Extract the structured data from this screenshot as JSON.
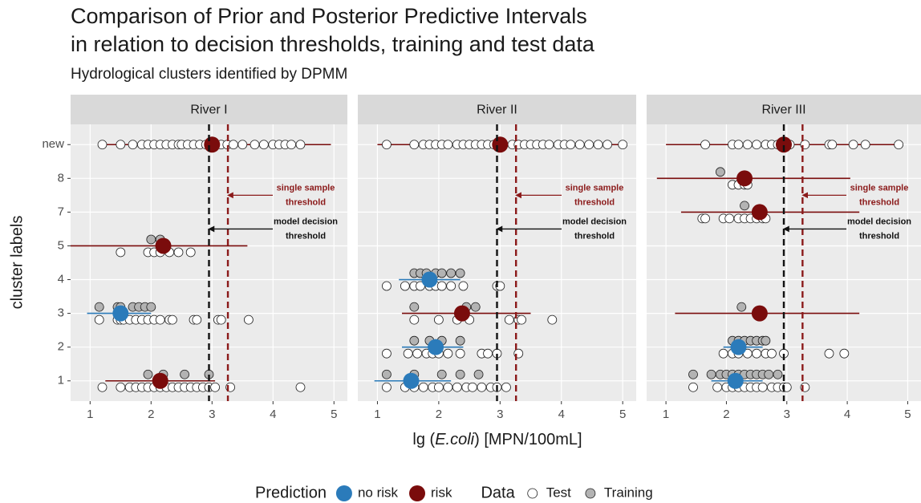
{
  "figure": {
    "title": [
      "Comparison of Prior and Posterior Predictive Intervals",
      "in relation to decision thresholds, training and test data"
    ],
    "subtitle": "Hydrological clusters identified by DPMM",
    "xlabel": [
      "lg (",
      "E.coli",
      ") [MPN/100mL]"
    ],
    "ylabel": "cluster labels",
    "thresholds": [
      {
        "value": 2.95,
        "color": "#111111",
        "label": [
          "model decision",
          "threshold"
        ]
      },
      {
        "value": 3.26,
        "color": "#8b1a1a",
        "label": [
          "single sample",
          "threshold"
        ]
      }
    ],
    "legend": [
      {
        "title": "Prediction",
        "items": [
          {
            "name": "no risk",
            "color": "#2b7bba"
          },
          {
            "name": "risk",
            "color": "#7a0c0c"
          }
        ]
      },
      {
        "title": "Data",
        "items": [
          {
            "name": "Test",
            "color": "#ffffff"
          },
          {
            "name": "Training",
            "color": "#b3b3b3"
          }
        ]
      }
    ]
  },
  "chart_data": [
    {
      "type": "dotinterval",
      "title": "River I",
      "categories": [
        "1",
        "2",
        "3",
        "4",
        "5",
        "7",
        "8",
        "new"
      ],
      "xlim": [
        0.68,
        5.22
      ],
      "xticks": [
        1,
        2,
        3,
        4,
        5
      ],
      "grid": true,
      "prediction": {
        "values": [
          2.15,
          null,
          1.5,
          null,
          2.2,
          null,
          null,
          3.0
        ],
        "low": [
          1.25,
          null,
          0.95,
          null,
          0.68,
          null,
          null,
          1.2
        ],
        "high": [
          3.05,
          null,
          2.0,
          null,
          3.58,
          null,
          null,
          4.95
        ],
        "class": [
          "risk",
          null,
          "no risk",
          null,
          "risk",
          null,
          null,
          "risk"
        ]
      },
      "training": {
        "categories": [
          "5",
          "5",
          "3",
          "3",
          "3",
          "3",
          "3",
          "3",
          "3",
          "1",
          "1",
          "1",
          "1"
        ],
        "values": [
          2.0,
          2.15,
          1.15,
          1.45,
          1.5,
          1.7,
          1.8,
          1.9,
          2.0,
          1.95,
          2.2,
          2.55,
          2.95
        ]
      },
      "test": {
        "categories": [
          "new",
          "new",
          "new",
          "new",
          "new",
          "new",
          "new",
          "new",
          "new",
          "new",
          "new",
          "new",
          "new",
          "new",
          "new",
          "new",
          "new",
          "new",
          "new",
          "new",
          "new",
          "new",
          "new",
          "new",
          "new",
          "new",
          "new",
          "5",
          "5",
          "5",
          "5",
          "5",
          "5",
          "5",
          "3",
          "3",
          "3",
          "3",
          "3",
          "3",
          "3",
          "3",
          "3",
          "3",
          "3",
          "3",
          "3",
          "3",
          "3",
          "3",
          "3",
          "1",
          "1",
          "1",
          "1",
          "1",
          "1",
          "1",
          "1",
          "1",
          "1",
          "1",
          "1",
          "1",
          "1",
          "1",
          "1",
          "1",
          "1",
          "1"
        ],
        "values": [
          1.2,
          1.5,
          1.7,
          1.85,
          1.95,
          2.05,
          2.15,
          2.25,
          2.35,
          2.45,
          2.5,
          2.6,
          2.7,
          2.8,
          2.9,
          3.05,
          3.15,
          3.25,
          3.35,
          3.5,
          3.7,
          3.85,
          4.0,
          4.1,
          4.2,
          4.3,
          4.45,
          1.5,
          1.95,
          2.05,
          2.15,
          2.3,
          2.45,
          2.65,
          1.15,
          1.45,
          1.5,
          1.55,
          1.65,
          1.75,
          1.85,
          1.95,
          2.05,
          2.15,
          2.3,
          2.35,
          2.7,
          2.75,
          3.1,
          3.15,
          3.6,
          1.2,
          1.5,
          1.65,
          1.75,
          1.85,
          1.95,
          2.05,
          2.15,
          2.25,
          2.35,
          2.45,
          2.55,
          2.65,
          2.75,
          2.85,
          2.95,
          3.05,
          3.3,
          4.45
        ]
      }
    },
    {
      "type": "dotinterval",
      "title": "River II",
      "categories": [
        "1",
        "2",
        "3",
        "4",
        "5",
        "7",
        "8",
        "new"
      ],
      "xlim": [
        0.68,
        5.22
      ],
      "xticks": [
        1,
        2,
        3,
        4,
        5
      ],
      "grid": true,
      "prediction": {
        "values": [
          1.55,
          1.95,
          2.38,
          1.85,
          null,
          null,
          null,
          3.0
        ],
        "low": [
          0.95,
          1.4,
          1.4,
          1.35,
          null,
          null,
          null,
          1.0
        ],
        "high": [
          2.2,
          2.4,
          3.5,
          2.35,
          null,
          null,
          null,
          4.95
        ],
        "class": [
          "no risk",
          "no risk",
          "risk",
          "no risk",
          null,
          null,
          null,
          "risk"
        ]
      },
      "training": {
        "categories": [
          "4",
          "4",
          "4",
          "4",
          "4",
          "4",
          "4",
          "3",
          "3",
          "3",
          "2",
          "2",
          "2",
          "2",
          "1",
          "1",
          "1",
          "1",
          "1"
        ],
        "values": [
          1.6,
          1.7,
          1.8,
          1.95,
          2.05,
          2.2,
          2.35,
          1.6,
          2.45,
          2.6,
          1.6,
          1.85,
          2.05,
          2.35,
          1.15,
          1.6,
          2.05,
          2.35,
          2.65
        ]
      },
      "test": {
        "categories": [
          "new",
          "new",
          "new",
          "new",
          "new",
          "new",
          "new",
          "new",
          "new",
          "new",
          "new",
          "new",
          "new",
          "new",
          "new",
          "new",
          "new",
          "new",
          "new",
          "new",
          "new",
          "new",
          "new",
          "new",
          "new",
          "new",
          "new",
          "new",
          "new",
          "new",
          "4",
          "4",
          "4",
          "4",
          "4",
          "4",
          "4",
          "4",
          "4",
          "4",
          "4",
          "3",
          "3",
          "3",
          "3",
          "3",
          "3",
          "3",
          "3",
          "2",
          "2",
          "2",
          "2",
          "2",
          "2",
          "2",
          "2",
          "2",
          "2",
          "2",
          "2",
          "1",
          "1",
          "1",
          "1",
          "1",
          "1",
          "1",
          "1",
          "1",
          "1",
          "1",
          "1",
          "1",
          "1"
        ],
        "values": [
          1.15,
          1.6,
          1.75,
          1.85,
          1.95,
          2.05,
          2.15,
          2.3,
          2.4,
          2.5,
          2.6,
          2.7,
          2.8,
          2.9,
          3.05,
          3.2,
          3.3,
          3.4,
          3.5,
          3.6,
          3.7,
          3.8,
          3.95,
          4.05,
          4.15,
          4.3,
          4.45,
          4.6,
          4.75,
          5.0,
          1.15,
          1.45,
          1.6,
          1.7,
          1.85,
          1.95,
          2.05,
          2.2,
          2.4,
          2.95,
          3.0,
          1.6,
          2.0,
          2.3,
          2.5,
          3.15,
          3.3,
          3.35,
          3.85,
          1.15,
          1.5,
          1.65,
          1.8,
          1.9,
          2.0,
          2.15,
          2.35,
          2.7,
          2.8,
          2.95,
          3.3,
          1.15,
          1.45,
          1.6,
          1.75,
          1.9,
          2.0,
          2.15,
          2.3,
          2.45,
          2.55,
          2.7,
          2.85,
          2.95,
          3.1
        ]
      }
    },
    {
      "type": "dotinterval",
      "title": "River III",
      "categories": [
        "1",
        "2",
        "3",
        "4",
        "5",
        "7",
        "8",
        "new"
      ],
      "xlim": [
        0.68,
        5.22
      ],
      "xticks": [
        1,
        2,
        3,
        4,
        5
      ],
      "grid": true,
      "prediction": {
        "values": [
          2.15,
          2.2,
          2.55,
          null,
          null,
          2.55,
          2.3,
          2.95
        ],
        "low": [
          1.75,
          1.95,
          1.15,
          null,
          null,
          1.25,
          0.85,
          1.0
        ],
        "high": [
          2.6,
          2.6,
          4.2,
          null,
          null,
          4.2,
          4.05,
          4.85
        ],
        "class": [
          "no risk",
          "no risk",
          "risk",
          null,
          null,
          "risk",
          "risk",
          "risk"
        ]
      },
      "training": {
        "categories": [
          "8",
          "7",
          "3",
          "2",
          "2",
          "2",
          "2",
          "2",
          "2",
          "2",
          "1",
          "1",
          "1",
          "1",
          "1",
          "1",
          "1",
          "1",
          "1",
          "1",
          "1",
          "1"
        ],
        "values": [
          1.9,
          2.3,
          2.25,
          2.1,
          2.2,
          2.3,
          2.4,
          2.5,
          2.6,
          2.65,
          1.45,
          1.75,
          1.9,
          2.0,
          2.1,
          2.2,
          2.3,
          2.4,
          2.5,
          2.6,
          2.7,
          2.85
        ]
      },
      "test": {
        "categories": [
          "new",
          "new",
          "new",
          "new",
          "new",
          "new",
          "new",
          "new",
          "new",
          "new",
          "new",
          "new",
          "new",
          "new",
          "new",
          "new",
          "8",
          "8",
          "8",
          "8",
          "7",
          "7",
          "7",
          "7",
          "7",
          "7",
          "7",
          "7",
          "7",
          "7",
          "2",
          "2",
          "2",
          "2",
          "2",
          "2",
          "2",
          "2",
          "2",
          "2",
          "1",
          "1",
          "1",
          "1",
          "1",
          "1",
          "1",
          "1",
          "1",
          "1",
          "1",
          "1",
          "1",
          "1"
        ],
        "values": [
          1.65,
          2.1,
          2.2,
          2.35,
          2.5,
          2.65,
          2.75,
          2.85,
          2.95,
          3.05,
          3.3,
          3.7,
          3.75,
          4.1,
          4.3,
          4.85,
          2.1,
          2.2,
          2.3,
          2.35,
          1.6,
          1.65,
          1.95,
          2.05,
          2.2,
          2.3,
          2.4,
          2.5,
          2.6,
          2.65,
          1.95,
          2.1,
          2.2,
          2.35,
          2.5,
          2.65,
          2.75,
          2.95,
          3.7,
          3.95,
          1.45,
          1.85,
          2.0,
          2.1,
          2.2,
          2.3,
          2.4,
          2.5,
          2.6,
          2.75,
          2.85,
          2.95,
          3.0,
          3.3
        ]
      }
    }
  ]
}
